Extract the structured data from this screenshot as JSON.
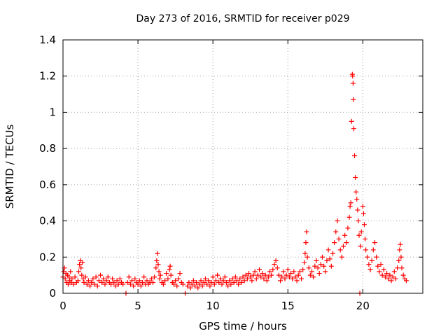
{
  "chart_data": {
    "type": "scatter",
    "title": "Day 273 of 2016, SRMTID for receiver p029",
    "xlabel": "GPS time / hours",
    "ylabel": "SRMTID / TECUs",
    "xlim": [
      0,
      24
    ],
    "ylim": [
      0,
      1.4
    ],
    "xticks": [
      0,
      5,
      10,
      15,
      20
    ],
    "yticks": [
      0,
      0.2,
      0.4,
      0.6,
      0.8,
      1,
      1.2,
      1.4
    ],
    "xtick_labels": [
      "0",
      "5",
      "10",
      "15",
      "20"
    ],
    "ytick_labels": [
      "0",
      "0.2",
      "0.4",
      "0.6",
      "0.8",
      "1",
      "1.2",
      "1.4"
    ],
    "grid": true,
    "marker": "+",
    "color": "#ff0000",
    "series": [
      {
        "name": "SRMTID",
        "points": [
          [
            0.0,
            0.09
          ],
          [
            0.05,
            0.12
          ],
          [
            0.1,
            0.14
          ],
          [
            0.15,
            0.08
          ],
          [
            0.2,
            0.11
          ],
          [
            0.25,
            0.06
          ],
          [
            0.3,
            0.1
          ],
          [
            0.35,
            0.05
          ],
          [
            0.4,
            0.09
          ],
          [
            0.45,
            0.07
          ],
          [
            0.5,
            0.12
          ],
          [
            0.55,
            0.06
          ],
          [
            0.6,
            0.08
          ],
          [
            0.7,
            0.05
          ],
          [
            0.8,
            0.09
          ],
          [
            0.9,
            0.06
          ],
          [
            1.0,
            0.07
          ],
          [
            1.05,
            0.12
          ],
          [
            1.1,
            0.16
          ],
          [
            1.15,
            0.18
          ],
          [
            1.2,
            0.14
          ],
          [
            1.25,
            0.1
          ],
          [
            1.3,
            0.17
          ],
          [
            1.35,
            0.08
          ],
          [
            1.4,
            0.06
          ],
          [
            1.5,
            0.09
          ],
          [
            1.6,
            0.05
          ],
          [
            1.7,
            0.07
          ],
          [
            1.8,
            0.04
          ],
          [
            1.9,
            0.06
          ],
          [
            2.0,
            0.08
          ],
          [
            2.1,
            0.05
          ],
          [
            2.2,
            0.09
          ],
          [
            2.3,
            0.04
          ],
          [
            2.4,
            0.07
          ],
          [
            2.5,
            0.1
          ],
          [
            2.6,
            0.06
          ],
          [
            2.7,
            0.08
          ],
          [
            2.8,
            0.05
          ],
          [
            2.9,
            0.07
          ],
          [
            3.0,
            0.09
          ],
          [
            3.1,
            0.06
          ],
          [
            3.2,
            0.05
          ],
          [
            3.3,
            0.08
          ],
          [
            3.4,
            0.06
          ],
          [
            3.5,
            0.04
          ],
          [
            3.6,
            0.07
          ],
          [
            3.7,
            0.05
          ],
          [
            3.8,
            0.08
          ],
          [
            3.9,
            0.06
          ],
          [
            4.0,
            0.05
          ],
          [
            4.2,
            0.0
          ],
          [
            4.3,
            0.06
          ],
          [
            4.4,
            0.09
          ],
          [
            4.5,
            0.05
          ],
          [
            4.6,
            0.07
          ],
          [
            4.7,
            0.04
          ],
          [
            4.8,
            0.08
          ],
          [
            4.9,
            0.06
          ],
          [
            5.0,
            0.05
          ],
          [
            5.1,
            0.07
          ],
          [
            5.2,
            0.04
          ],
          [
            5.3,
            0.06
          ],
          [
            5.4,
            0.09
          ],
          [
            5.5,
            0.05
          ],
          [
            5.6,
            0.07
          ],
          [
            5.7,
            0.05
          ],
          [
            5.8,
            0.06
          ],
          [
            5.9,
            0.08
          ],
          [
            6.0,
            0.06
          ],
          [
            6.1,
            0.09
          ],
          [
            6.2,
            0.14
          ],
          [
            6.25,
            0.18
          ],
          [
            6.3,
            0.22
          ],
          [
            6.35,
            0.16
          ],
          [
            6.4,
            0.12
          ],
          [
            6.45,
            0.08
          ],
          [
            6.5,
            0.1
          ],
          [
            6.6,
            0.06
          ],
          [
            6.7,
            0.05
          ],
          [
            6.8,
            0.07
          ],
          [
            6.9,
            0.11
          ],
          [
            7.0,
            0.08
          ],
          [
            7.1,
            0.13
          ],
          [
            7.15,
            0.15
          ],
          [
            7.2,
            0.1
          ],
          [
            7.3,
            0.06
          ],
          [
            7.4,
            0.05
          ],
          [
            7.5,
            0.07
          ],
          [
            7.6,
            0.04
          ],
          [
            7.7,
            0.08
          ],
          [
            7.8,
            0.11
          ],
          [
            7.9,
            0.06
          ],
          [
            8.0,
            0.05
          ],
          [
            8.15,
            0.0
          ],
          [
            8.3,
            0.04
          ],
          [
            8.4,
            0.06
          ],
          [
            8.5,
            0.03
          ],
          [
            8.6,
            0.05
          ],
          [
            8.7,
            0.07
          ],
          [
            8.8,
            0.04
          ],
          [
            8.9,
            0.06
          ],
          [
            9.0,
            0.03
          ],
          [
            9.1,
            0.05
          ],
          [
            9.2,
            0.07
          ],
          [
            9.3,
            0.04
          ],
          [
            9.4,
            0.06
          ],
          [
            9.5,
            0.08
          ],
          [
            9.6,
            0.05
          ],
          [
            9.7,
            0.07
          ],
          [
            9.8,
            0.04
          ],
          [
            9.9,
            0.06
          ],
          [
            10.0,
            0.09
          ],
          [
            10.1,
            0.05
          ],
          [
            10.2,
            0.07
          ],
          [
            10.3,
            0.1
          ],
          [
            10.4,
            0.06
          ],
          [
            10.5,
            0.08
          ],
          [
            10.6,
            0.05
          ],
          [
            10.7,
            0.07
          ],
          [
            10.8,
            0.09
          ],
          [
            10.9,
            0.06
          ],
          [
            11.0,
            0.04
          ],
          [
            11.1,
            0.07
          ],
          [
            11.2,
            0.05
          ],
          [
            11.3,
            0.08
          ],
          [
            11.4,
            0.06
          ],
          [
            11.5,
            0.09
          ],
          [
            11.6,
            0.07
          ],
          [
            11.7,
            0.05
          ],
          [
            11.8,
            0.08
          ],
          [
            11.9,
            0.06
          ],
          [
            12.0,
            0.09
          ],
          [
            12.1,
            0.07
          ],
          [
            12.2,
            0.1
          ],
          [
            12.3,
            0.08
          ],
          [
            12.4,
            0.11
          ],
          [
            12.5,
            0.09
          ],
          [
            12.6,
            0.07
          ],
          [
            12.7,
            0.1
          ],
          [
            12.8,
            0.12
          ],
          [
            12.9,
            0.08
          ],
          [
            13.0,
            0.1
          ],
          [
            13.1,
            0.13
          ],
          [
            13.2,
            0.09
          ],
          [
            13.3,
            0.11
          ],
          [
            13.4,
            0.08
          ],
          [
            13.5,
            0.1
          ],
          [
            13.6,
            0.07
          ],
          [
            13.7,
            0.09
          ],
          [
            13.8,
            0.12
          ],
          [
            13.9,
            0.1
          ],
          [
            14.0,
            0.13
          ],
          [
            14.1,
            0.16
          ],
          [
            14.2,
            0.18
          ],
          [
            14.3,
            0.14
          ],
          [
            14.4,
            0.1
          ],
          [
            14.5,
            0.07
          ],
          [
            14.6,
            0.09
          ],
          [
            14.7,
            0.12
          ],
          [
            14.8,
            0.08
          ],
          [
            14.9,
            0.1
          ],
          [
            15.0,
            0.13
          ],
          [
            15.1,
            0.09
          ],
          [
            15.2,
            0.11
          ],
          [
            15.3,
            0.08
          ],
          [
            15.4,
            0.12
          ],
          [
            15.5,
            0.09
          ],
          [
            15.6,
            0.07
          ],
          [
            15.7,
            0.1
          ],
          [
            15.8,
            0.12
          ],
          [
            15.9,
            0.08
          ],
          [
            16.0,
            0.13
          ],
          [
            16.1,
            0.17
          ],
          [
            16.15,
            0.22
          ],
          [
            16.2,
            0.28
          ],
          [
            16.25,
            0.34
          ],
          [
            16.3,
            0.2
          ],
          [
            16.4,
            0.14
          ],
          [
            16.5,
            0.1
          ],
          [
            16.6,
            0.12
          ],
          [
            16.7,
            0.09
          ],
          [
            16.8,
            0.15
          ],
          [
            16.9,
            0.18
          ],
          [
            17.0,
            0.14
          ],
          [
            17.1,
            0.11
          ],
          [
            17.2,
            0.16
          ],
          [
            17.3,
            0.2
          ],
          [
            17.4,
            0.15
          ],
          [
            17.5,
            0.12
          ],
          [
            17.6,
            0.18
          ],
          [
            17.7,
            0.24
          ],
          [
            17.8,
            0.19
          ],
          [
            17.9,
            0.15
          ],
          [
            18.0,
            0.22
          ],
          [
            18.1,
            0.28
          ],
          [
            18.2,
            0.34
          ],
          [
            18.3,
            0.4
          ],
          [
            18.4,
            0.3
          ],
          [
            18.5,
            0.24
          ],
          [
            18.6,
            0.2
          ],
          [
            18.7,
            0.26
          ],
          [
            18.8,
            0.32
          ],
          [
            18.9,
            0.28
          ],
          [
            19.0,
            0.36
          ],
          [
            19.1,
            0.42
          ],
          [
            19.15,
            0.48
          ],
          [
            19.2,
            0.5
          ],
          [
            19.25,
            0.95
          ],
          [
            19.3,
            1.21
          ],
          [
            19.32,
            1.2
          ],
          [
            19.35,
            1.16
          ],
          [
            19.37,
            1.07
          ],
          [
            19.4,
            0.91
          ],
          [
            19.45,
            0.76
          ],
          [
            19.5,
            0.64
          ],
          [
            19.55,
            0.56
          ],
          [
            19.6,
            0.52
          ],
          [
            19.65,
            0.46
          ],
          [
            19.7,
            0.4
          ],
          [
            19.75,
            0.32
          ],
          [
            19.8,
            0.0
          ],
          [
            19.85,
            0.26
          ],
          [
            19.9,
            0.34
          ],
          [
            20.0,
            0.48
          ],
          [
            20.05,
            0.44
          ],
          [
            20.1,
            0.38
          ],
          [
            20.15,
            0.3
          ],
          [
            20.2,
            0.24
          ],
          [
            20.3,
            0.2
          ],
          [
            20.4,
            0.16
          ],
          [
            20.5,
            0.13
          ],
          [
            20.6,
            0.18
          ],
          [
            20.7,
            0.24
          ],
          [
            20.8,
            0.28
          ],
          [
            20.9,
            0.2
          ],
          [
            21.0,
            0.15
          ],
          [
            21.1,
            0.12
          ],
          [
            21.2,
            0.16
          ],
          [
            21.3,
            0.1
          ],
          [
            21.4,
            0.13
          ],
          [
            21.5,
            0.09
          ],
          [
            21.6,
            0.11
          ],
          [
            21.7,
            0.08
          ],
          [
            21.8,
            0.1
          ],
          [
            21.9,
            0.07
          ],
          [
            22.0,
            0.09
          ],
          [
            22.1,
            0.12
          ],
          [
            22.2,
            0.08
          ],
          [
            22.3,
            0.14
          ],
          [
            22.4,
            0.18
          ],
          [
            22.45,
            0.24
          ],
          [
            22.5,
            0.27
          ],
          [
            22.55,
            0.2
          ],
          [
            22.6,
            0.14
          ],
          [
            22.7,
            0.1
          ],
          [
            22.8,
            0.08
          ],
          [
            22.9,
            0.07
          ]
        ]
      }
    ]
  }
}
